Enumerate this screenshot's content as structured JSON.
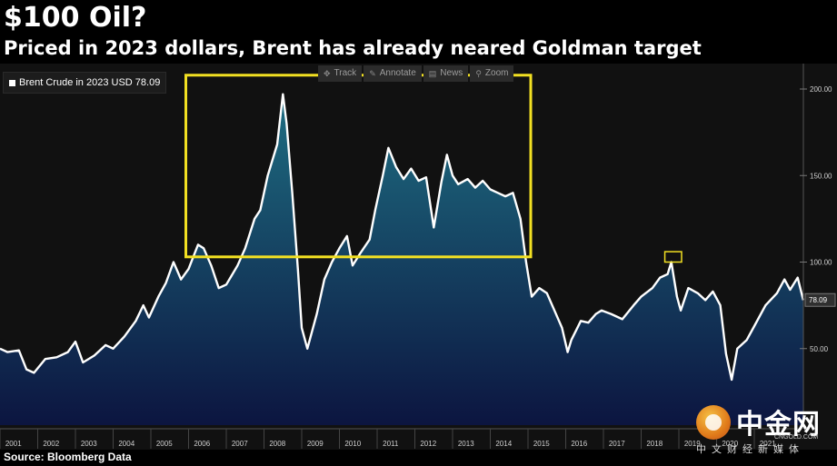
{
  "header": {
    "title": "$100 Oil?",
    "subtitle": "Priced in 2023 dollars, Brent has already neared Goldman target"
  },
  "legend": {
    "label": "Brent Crude in 2023 USD 78.09"
  },
  "toolbar": {
    "track": "Track",
    "annotate": "Annotate",
    "news": "News",
    "zoom": "Zoom"
  },
  "source": "Source: Bloomberg Data",
  "watermark": {
    "brand": "中金网",
    "domain": "CNGOLD.COM",
    "tagline": "中文财经新媒体"
  },
  "colors": {
    "line": "#ffffff",
    "fill_top": "#1e6e82",
    "fill_bottom": "#0c1540",
    "highlight_box": "#f2e022",
    "background": "#111111"
  },
  "chart_data": {
    "type": "area",
    "series": [
      {
        "name": "Brent Crude in 2023 USD"
      }
    ],
    "x_ticks": [
      "2001",
      "2002",
      "2003",
      "2004",
      "2005",
      "2006",
      "2007",
      "2008",
      "2009",
      "2010",
      "2011",
      "2012",
      "2013",
      "2014",
      "2015",
      "2016",
      "2017",
      "2018",
      "2019",
      "2020",
      "2021"
    ],
    "y_ticks": [
      "50.00",
      "100.00",
      "150.00",
      "200.00"
    ],
    "ylim": [
      0,
      205
    ],
    "last_value": 78.09,
    "last_value_label": "78.09",
    "points": [
      [
        2001.0,
        50
      ],
      [
        2001.2,
        48
      ],
      [
        2001.5,
        49
      ],
      [
        2001.7,
        38
      ],
      [
        2001.9,
        36
      ],
      [
        2002.2,
        44
      ],
      [
        2002.5,
        45
      ],
      [
        2002.8,
        48
      ],
      [
        2003.0,
        54
      ],
      [
        2003.2,
        42
      ],
      [
        2003.5,
        46
      ],
      [
        2003.8,
        52
      ],
      [
        2004.0,
        50
      ],
      [
        2004.3,
        57
      ],
      [
        2004.6,
        66
      ],
      [
        2004.8,
        75
      ],
      [
        2004.95,
        68
      ],
      [
        2005.2,
        80
      ],
      [
        2005.4,
        88
      ],
      [
        2005.6,
        100
      ],
      [
        2005.8,
        90
      ],
      [
        2006.0,
        96
      ],
      [
        2006.25,
        110
      ],
      [
        2006.4,
        108
      ],
      [
        2006.6,
        98
      ],
      [
        2006.8,
        85
      ],
      [
        2007.0,
        87
      ],
      [
        2007.3,
        98
      ],
      [
        2007.5,
        108
      ],
      [
        2007.75,
        125
      ],
      [
        2007.9,
        130
      ],
      [
        2008.1,
        150
      ],
      [
        2008.35,
        168
      ],
      [
        2008.5,
        197
      ],
      [
        2008.6,
        180
      ],
      [
        2008.75,
        140
      ],
      [
        2008.9,
        95
      ],
      [
        2009.0,
        62
      ],
      [
        2009.15,
        50
      ],
      [
        2009.4,
        70
      ],
      [
        2009.6,
        90
      ],
      [
        2009.8,
        100
      ],
      [
        2010.0,
        108
      ],
      [
        2010.2,
        115
      ],
      [
        2010.35,
        98
      ],
      [
        2010.55,
        105
      ],
      [
        2010.8,
        113
      ],
      [
        2010.95,
        130
      ],
      [
        2011.15,
        150
      ],
      [
        2011.3,
        166
      ],
      [
        2011.5,
        155
      ],
      [
        2011.7,
        148
      ],
      [
        2011.9,
        154
      ],
      [
        2012.1,
        147
      ],
      [
        2012.3,
        149
      ],
      [
        2012.5,
        120
      ],
      [
        2012.7,
        146
      ],
      [
        2012.85,
        162
      ],
      [
        2013.0,
        150
      ],
      [
        2013.15,
        145
      ],
      [
        2013.4,
        148
      ],
      [
        2013.6,
        143
      ],
      [
        2013.8,
        147
      ],
      [
        2014.0,
        142
      ],
      [
        2014.2,
        140
      ],
      [
        2014.4,
        138
      ],
      [
        2014.6,
        140
      ],
      [
        2014.8,
        125
      ],
      [
        2014.95,
        100
      ],
      [
        2015.1,
        80
      ],
      [
        2015.3,
        85
      ],
      [
        2015.5,
        82
      ],
      [
        2015.7,
        72
      ],
      [
        2015.9,
        62
      ],
      [
        2016.05,
        48
      ],
      [
        2016.15,
        55
      ],
      [
        2016.4,
        66
      ],
      [
        2016.6,
        65
      ],
      [
        2016.8,
        70
      ],
      [
        2016.95,
        72
      ],
      [
        2017.2,
        70
      ],
      [
        2017.5,
        67
      ],
      [
        2017.8,
        75
      ],
      [
        2018.0,
        80
      ],
      [
        2018.3,
        85
      ],
      [
        2018.5,
        91
      ],
      [
        2018.7,
        93
      ],
      [
        2018.8,
        100
      ],
      [
        2018.95,
        80
      ],
      [
        2019.05,
        72
      ],
      [
        2019.25,
        85
      ],
      [
        2019.5,
        82
      ],
      [
        2019.7,
        78
      ],
      [
        2019.9,
        83
      ],
      [
        2020.1,
        75
      ],
      [
        2020.25,
        47
      ],
      [
        2020.4,
        32
      ],
      [
        2020.55,
        50
      ],
      [
        2020.8,
        55
      ],
      [
        2021.0,
        63
      ],
      [
        2021.3,
        75
      ],
      [
        2021.6,
        82
      ],
      [
        2021.8,
        90
      ],
      [
        2021.95,
        84
      ],
      [
        2022.15,
        91
      ],
      [
        2022.3,
        78
      ]
    ],
    "annotations": [
      {
        "type": "box",
        "x_range": [
          2006.0,
          2015.0
        ],
        "y_range": [
          103,
          208
        ]
      },
      {
        "type": "box",
        "x_range": [
          2018.7,
          2019.0
        ],
        "y_range": [
          100,
          106
        ]
      }
    ],
    "grid": false,
    "legend_position": "top-left"
  }
}
